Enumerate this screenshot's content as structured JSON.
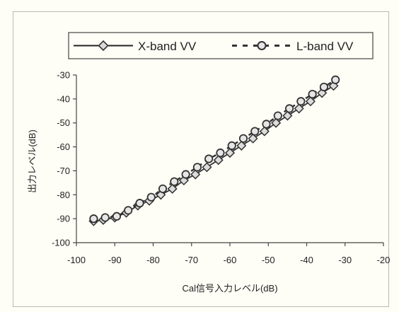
{
  "chart_data": {
    "type": "scatter",
    "xlabel": "Cal信号入力レベル(dB)",
    "ylabel": "出力レベル(dB)",
    "xlim": [
      -100,
      -20
    ],
    "ylim": [
      -100,
      -30
    ],
    "xticks": [
      -100,
      -90,
      -80,
      -70,
      -60,
      -50,
      -40,
      -30,
      -20
    ],
    "yticks": [
      -30,
      -40,
      -50,
      -60,
      -70,
      -80,
      -90,
      -100
    ],
    "grid": false,
    "legend_position": "top",
    "series": [
      {
        "name": "X-band VV",
        "line_style": "solid",
        "marker": "diamond",
        "color": "#333333",
        "points": [
          [
            -95.5,
            -91
          ],
          [
            -93,
            -90.5
          ],
          [
            -90,
            -89.5
          ],
          [
            -87,
            -87.5
          ],
          [
            -84,
            -84.5
          ],
          [
            -81,
            -82.5
          ],
          [
            -78,
            -80
          ],
          [
            -75,
            -77.5
          ],
          [
            -72,
            -74
          ],
          [
            -69,
            -71.5
          ],
          [
            -66,
            -68.5
          ],
          [
            -63,
            -65.5
          ],
          [
            -60,
            -62.5
          ],
          [
            -57,
            -59.5
          ],
          [
            -54,
            -56.5
          ],
          [
            -51,
            -53.5
          ],
          [
            -48,
            -50
          ],
          [
            -45,
            -47
          ],
          [
            -42,
            -44
          ],
          [
            -39,
            -41
          ],
          [
            -36,
            -37.5
          ],
          [
            -33,
            -34.5
          ]
        ]
      },
      {
        "name": "L-band VV",
        "line_style": "dashed",
        "marker": "circle",
        "color": "#333333",
        "points": [
          [
            -95.5,
            -90
          ],
          [
            -92.5,
            -89.5
          ],
          [
            -89.5,
            -89
          ],
          [
            -86.5,
            -86.5
          ],
          [
            -83.5,
            -83.5
          ],
          [
            -80.5,
            -81
          ],
          [
            -77.5,
            -77.5
          ],
          [
            -74.5,
            -74.5
          ],
          [
            -71.5,
            -71.5
          ],
          [
            -68.5,
            -68.5
          ],
          [
            -65.5,
            -65
          ],
          [
            -62.5,
            -62.5
          ],
          [
            -59.5,
            -59.5
          ],
          [
            -56.5,
            -56.5
          ],
          [
            -53.5,
            -53.5
          ],
          [
            -50.5,
            -50.5
          ],
          [
            -47.5,
            -47
          ],
          [
            -44.5,
            -44
          ],
          [
            -41.5,
            -41
          ],
          [
            -38.5,
            -38
          ],
          [
            -35.5,
            -35
          ],
          [
            -32.5,
            -32
          ]
        ]
      }
    ]
  }
}
